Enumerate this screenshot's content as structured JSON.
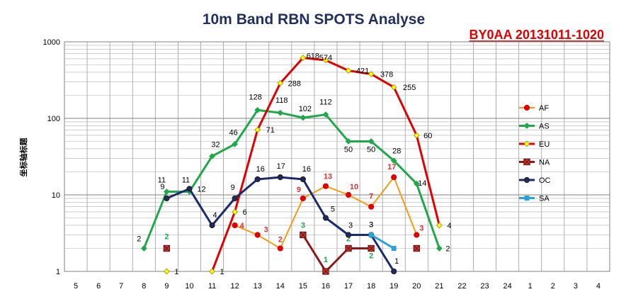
{
  "chart_data": {
    "type": "line",
    "title": "10m Band RBN SPOTS Analyse",
    "subtitle": "BY0AA 20131011-1020",
    "ylabel": "坐标轴标题",
    "xlabel": "",
    "y_scale": "log",
    "ylim": [
      1,
      1000
    ],
    "y_ticks": [
      "1",
      "10",
      "100",
      "1000"
    ],
    "categories": [
      "5",
      "6",
      "7",
      "8",
      "9",
      "10",
      "11",
      "12",
      "13",
      "14",
      "15",
      "16",
      "17",
      "18",
      "19",
      "20",
      "21",
      "22",
      "23",
      "24",
      "1",
      "2",
      "3",
      "4"
    ],
    "grid": true,
    "legend_position": "right",
    "series": [
      {
        "name": "AF",
        "color": "#f39c12",
        "marker": "circle",
        "marker_color": "#e00000",
        "label_color": "#e03030",
        "points": [
          {
            "x": "12",
            "y": 4,
            "label": "4"
          },
          {
            "x": "13",
            "y": 3,
            "label": "3"
          },
          {
            "x": "14",
            "y": 2,
            "label": "2"
          },
          {
            "x": "15",
            "y": 9,
            "label": "9"
          },
          {
            "x": "16",
            "y": 13,
            "label": "13"
          },
          {
            "x": "17",
            "y": 10,
            "label": "10"
          },
          {
            "x": "18",
            "y": 7,
            "label": "7"
          },
          {
            "x": "19",
            "y": 17,
            "label": "17"
          },
          {
            "x": "20",
            "y": 3,
            "label": "3"
          }
        ]
      },
      {
        "name": "AS",
        "color": "#1ea84a",
        "marker": "diamond",
        "marker_color": "#1ea84a",
        "label_color": "#000000",
        "points": [
          {
            "x": "8",
            "y": 2,
            "label": "2"
          },
          {
            "x": "9",
            "y": 11,
            "label": "11"
          },
          {
            "x": "10",
            "y": 11,
            "label": "11"
          },
          {
            "x": "11",
            "y": 32,
            "label": "32"
          },
          {
            "x": "12",
            "y": 46,
            "label": "46"
          },
          {
            "x": "13",
            "y": 128,
            "label": "128"
          },
          {
            "x": "14",
            "y": 118,
            "label": "118"
          },
          {
            "x": "15",
            "y": 102,
            "label": "102"
          },
          {
            "x": "16",
            "y": 112,
            "label": "112"
          },
          {
            "x": "17",
            "y": 50,
            "label": "50"
          },
          {
            "x": "18",
            "y": 50,
            "label": "50"
          },
          {
            "x": "19",
            "y": 28,
            "label": "28"
          },
          {
            "x": "20",
            "y": 14,
            "label": "14"
          },
          {
            "x": "21",
            "y": 2,
            "label": "2"
          }
        ]
      },
      {
        "name": "EU",
        "color": "#e00000",
        "marker": "diamond",
        "marker_color": "#ffff00",
        "label_color": "#000000",
        "points": [
          {
            "x": "9",
            "y": 1,
            "label": "1",
            "standalone": true
          },
          {
            "x": "11",
            "y": 1,
            "label": "1"
          },
          {
            "x": "12",
            "y": 6,
            "label": "6"
          },
          {
            "x": "13",
            "y": 71,
            "label": "71"
          },
          {
            "x": "14",
            "y": 288,
            "label": "288"
          },
          {
            "x": "15",
            "y": 618,
            "label": "618"
          },
          {
            "x": "16",
            "y": 574,
            "label": "574"
          },
          {
            "x": "17",
            "y": 421,
            "label": "421"
          },
          {
            "x": "18",
            "y": 378,
            "label": "378"
          },
          {
            "x": "19",
            "y": 255,
            "label": "255"
          },
          {
            "x": "20",
            "y": 60,
            "label": "60"
          },
          {
            "x": "21",
            "y": 4,
            "label": "4"
          }
        ]
      },
      {
        "name": "NA",
        "color": "#8b1a1a",
        "marker": "square-x",
        "marker_color": "#c0392b",
        "label_color": "#1ea84a",
        "points": [
          {
            "x": "9",
            "y": 2,
            "label": "2",
            "standalone": true
          },
          {
            "x": "15",
            "y": 3,
            "label": "3"
          },
          {
            "x": "16",
            "y": 1,
            "label": "1"
          },
          {
            "x": "17",
            "y": 2,
            "label": "2"
          },
          {
            "x": "18",
            "y": 2,
            "label": "2"
          },
          {
            "x": "20",
            "y": 2,
            "label": "",
            "standalone": true
          }
        ]
      },
      {
        "name": "OC",
        "color": "#1a2a6c",
        "marker": "circle",
        "marker_color": "#1a2a6c",
        "label_color": "#000000",
        "points": [
          {
            "x": "9",
            "y": 9,
            "label": "9"
          },
          {
            "x": "10",
            "y": 12,
            "label": "12"
          },
          {
            "x": "11",
            "y": 4,
            "label": "4"
          },
          {
            "x": "12",
            "y": 9,
            "label": "9"
          },
          {
            "x": "13",
            "y": 16,
            "label": "16"
          },
          {
            "x": "14",
            "y": 17,
            "label": "17"
          },
          {
            "x": "15",
            "y": 16,
            "label": "16"
          },
          {
            "x": "16",
            "y": 5,
            "label": "5"
          },
          {
            "x": "17",
            "y": 3,
            "label": "3"
          },
          {
            "x": "18",
            "y": 3,
            "label": "3"
          },
          {
            "x": "19",
            "y": 1,
            "label": "1"
          }
        ]
      },
      {
        "name": "SA",
        "color": "#29a3e0",
        "marker": "square",
        "marker_color": "#29a3e0",
        "label_color": "#000000",
        "points": [
          {
            "x": "18",
            "y": 3,
            "label": "3"
          },
          {
            "x": "19",
            "y": 2,
            "label": ""
          }
        ]
      }
    ]
  }
}
